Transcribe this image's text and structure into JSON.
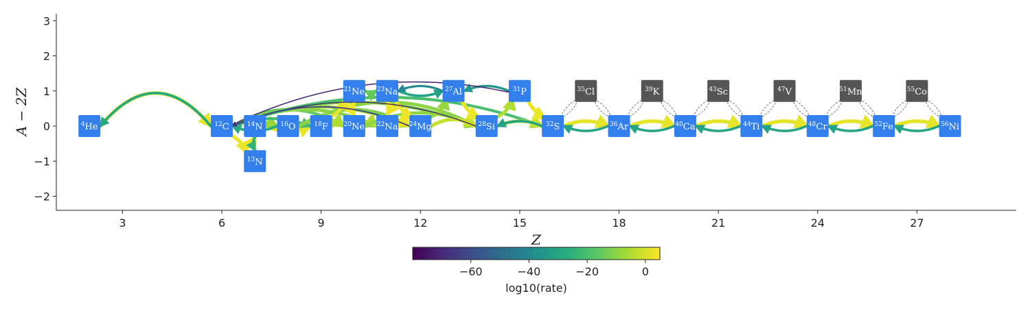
{
  "chart_data": {
    "type": "network",
    "xlabel": "Z",
    "ylabel": "A − 2Z",
    "xlim": [
      1,
      30
    ],
    "ylim": [
      -2.4,
      3.2
    ],
    "xticks": [
      3,
      6,
      9,
      12,
      15,
      18,
      21,
      24,
      27
    ],
    "yticks": [
      3,
      2,
      1,
      0,
      -1,
      -2
    ],
    "colorbar": {
      "label": "log10(rate)",
      "range": [
        -80,
        5
      ],
      "ticks": [
        -60,
        -40,
        -20,
        0
      ],
      "tick_labels": [
        "−60",
        "−40",
        "−20",
        "0"
      ]
    },
    "nodes": [
      {
        "sup": "4",
        "sym": "He",
        "Z": 2,
        "N": 0,
        "color": "#3380ed"
      },
      {
        "sup": "12",
        "sym": "C",
        "Z": 6,
        "N": 0,
        "color": "#3380ed"
      },
      {
        "sup": "13",
        "sym": "N",
        "Z": 7,
        "N": -1,
        "color": "#3380ed"
      },
      {
        "sup": "14",
        "sym": "N",
        "Z": 7,
        "N": 0,
        "color": "#3380ed"
      },
      {
        "sup": "16",
        "sym": "O",
        "Z": 8,
        "N": 0,
        "color": "#3380ed"
      },
      {
        "sup": "18",
        "sym": "F",
        "Z": 9,
        "N": 0,
        "color": "#3380ed"
      },
      {
        "sup": "20",
        "sym": "Ne",
        "Z": 10,
        "N": 0,
        "color": "#3380ed"
      },
      {
        "sup": "21",
        "sym": "Ne",
        "Z": 10,
        "N": 1,
        "color": "#3380ed"
      },
      {
        "sup": "22",
        "sym": "Na",
        "Z": 11,
        "N": 0,
        "color": "#3380ed"
      },
      {
        "sup": "23",
        "sym": "Na",
        "Z": 11,
        "N": 1,
        "color": "#3380ed"
      },
      {
        "sup": "24",
        "sym": "Mg",
        "Z": 12,
        "N": 0,
        "color": "#3380ed"
      },
      {
        "sup": "27",
        "sym": "Al",
        "Z": 13,
        "N": 1,
        "color": "#3380ed"
      },
      {
        "sup": "28",
        "sym": "Si",
        "Z": 14,
        "N": 0,
        "color": "#3380ed"
      },
      {
        "sup": "31",
        "sym": "P",
        "Z": 15,
        "N": 1,
        "color": "#3380ed"
      },
      {
        "sup": "32",
        "sym": "S",
        "Z": 16,
        "N": 0,
        "color": "#3380ed"
      },
      {
        "sup": "35",
        "sym": "Cl",
        "Z": 17,
        "N": 1,
        "color": "#555555"
      },
      {
        "sup": "36",
        "sym": "Ar",
        "Z": 18,
        "N": 0,
        "color": "#3380ed"
      },
      {
        "sup": "39",
        "sym": "K",
        "Z": 19,
        "N": 1,
        "color": "#555555"
      },
      {
        "sup": "40",
        "sym": "Ca",
        "Z": 20,
        "N": 0,
        "color": "#3380ed"
      },
      {
        "sup": "43",
        "sym": "Sc",
        "Z": 21,
        "N": 1,
        "color": "#555555"
      },
      {
        "sup": "44",
        "sym": "Ti",
        "Z": 22,
        "N": 0,
        "color": "#3380ed"
      },
      {
        "sup": "47",
        "sym": "V",
        "Z": 23,
        "N": 1,
        "color": "#555555"
      },
      {
        "sup": "48",
        "sym": "Cr",
        "Z": 24,
        "N": 0,
        "color": "#3380ed"
      },
      {
        "sup": "51",
        "sym": "Mn",
        "Z": 25,
        "N": 1,
        "color": "#555555"
      },
      {
        "sup": "52",
        "sym": "Fe",
        "Z": 26,
        "N": 0,
        "color": "#3380ed"
      },
      {
        "sup": "55",
        "sym": "Co",
        "Z": 27,
        "N": 1,
        "color": "#555555"
      },
      {
        "sup": "56",
        "sym": "Ni",
        "Z": 28,
        "N": 0,
        "color": "#3380ed"
      }
    ],
    "edges": [
      {
        "from": 0,
        "to": 1,
        "log_rate": 2,
        "bend": -1
      },
      {
        "from": 1,
        "to": 0,
        "log_rate": -28,
        "bend": 1
      },
      {
        "from": 1,
        "to": 2,
        "log_rate": 3,
        "bend": -0.2
      },
      {
        "from": 2,
        "to": 3,
        "log_rate": 3,
        "bend": -0.2
      },
      {
        "from": 3,
        "to": 2,
        "log_rate": -25,
        "bend": 0.2
      },
      {
        "from": 3,
        "to": 5,
        "log_rate": 2,
        "bend": 0.3
      },
      {
        "from": 1,
        "to": 4,
        "log_rate": -8,
        "bend": -0.3
      },
      {
        "from": 4,
        "to": 1,
        "log_rate": -28,
        "bend": -0.3
      },
      {
        "from": 1,
        "to": 6,
        "log_rate": -15,
        "bend": -0.5
      },
      {
        "from": 1,
        "to": 8,
        "log_rate": -10,
        "bend": -0.4
      },
      {
        "from": 1,
        "to": 10,
        "log_rate": -8,
        "bend": -0.4
      },
      {
        "from": 1,
        "to": 12,
        "log_rate": -12,
        "bend": -0.5
      },
      {
        "from": 1,
        "to": 14,
        "log_rate": -20,
        "bend": -0.6
      },
      {
        "from": 1,
        "to": 5,
        "log_rate": -22,
        "bend": -0.3
      },
      {
        "from": 4,
        "to": 6,
        "log_rate": -5,
        "bend": -0.4
      },
      {
        "from": 4,
        "to": 10,
        "log_rate": -12,
        "bend": -0.5
      },
      {
        "from": 4,
        "to": 12,
        "log_rate": -10,
        "bend": -0.5
      },
      {
        "from": 5,
        "to": 7,
        "log_rate": 2,
        "bend": 0.2
      },
      {
        "from": 5,
        "to": 6,
        "log_rate": -5,
        "bend": -0.3
      },
      {
        "from": 6,
        "to": 8,
        "log_rate": -5,
        "bend": -0.3
      },
      {
        "from": 6,
        "to": 10,
        "log_rate": -4,
        "bend": -0.3
      },
      {
        "from": 6,
        "to": 12,
        "log_rate": -10,
        "bend": -0.4
      },
      {
        "from": 7,
        "to": 6,
        "log_rate": 3,
        "bend": 0.2
      },
      {
        "from": 7,
        "to": 9,
        "log_rate": -15,
        "bend": 0.2
      },
      {
        "from": 8,
        "to": 9,
        "log_rate": 3,
        "bend": 0.2
      },
      {
        "from": 8,
        "to": 10,
        "log_rate": 3,
        "bend": -0.3
      },
      {
        "from": 9,
        "to": 10,
        "log_rate": 3,
        "bend": 0.2
      },
      {
        "from": 9,
        "to": 11,
        "log_rate": -30,
        "bend": 0.3
      },
      {
        "from": 10,
        "to": 11,
        "log_rate": -8,
        "bend": 0.3
      },
      {
        "from": 10,
        "to": 12,
        "log_rate": -2,
        "bend": -0.4
      },
      {
        "from": 11,
        "to": 12,
        "log_rate": 3,
        "bend": 0.2
      },
      {
        "from": 11,
        "to": 9,
        "log_rate": -40,
        "bend": 0.3
      },
      {
        "from": 12,
        "to": 13,
        "log_rate": -5,
        "bend": 0.3
      },
      {
        "from": 12,
        "to": 14,
        "log_rate": -2,
        "bend": -0.3
      },
      {
        "from": 13,
        "to": 14,
        "log_rate": 3,
        "bend": 0.2
      },
      {
        "from": 13,
        "to": 11,
        "log_rate": -35,
        "bend": 0.3
      },
      {
        "from": 13,
        "to": 1,
        "log_rate": -70,
        "bend": 0.5
      },
      {
        "from": 12,
        "to": 1,
        "log_rate": -75,
        "bend": 0.5
      },
      {
        "from": 10,
        "to": 1,
        "log_rate": -65,
        "bend": 0.4
      },
      {
        "from": 14,
        "to": 12,
        "log_rate": -30,
        "bend": 0.3
      },
      {
        "from": 14,
        "to": 16,
        "log_rate": 2,
        "bend": -0.3
      },
      {
        "from": 16,
        "to": 14,
        "log_rate": -30,
        "bend": -0.3
      },
      {
        "from": 16,
        "to": 18,
        "log_rate": 2,
        "bend": -0.3
      },
      {
        "from": 18,
        "to": 16,
        "log_rate": -30,
        "bend": -0.3
      },
      {
        "from": 18,
        "to": 20,
        "log_rate": 2,
        "bend": -0.3
      },
      {
        "from": 20,
        "to": 18,
        "log_rate": -30,
        "bend": -0.3
      },
      {
        "from": 20,
        "to": 22,
        "log_rate": 2,
        "bend": -0.3
      },
      {
        "from": 22,
        "to": 20,
        "log_rate": -30,
        "bend": -0.3
      },
      {
        "from": 22,
        "to": 24,
        "log_rate": 2,
        "bend": -0.3
      },
      {
        "from": 24,
        "to": 22,
        "log_rate": -30,
        "bend": -0.3
      },
      {
        "from": 24,
        "to": 26,
        "log_rate": 2,
        "bend": -0.3
      },
      {
        "from": 26,
        "to": 24,
        "log_rate": -30,
        "bend": -0.3
      }
    ],
    "dashed_edges": [
      [
        14,
        15
      ],
      [
        15,
        14
      ],
      [
        16,
        15
      ],
      [
        15,
        16
      ],
      [
        16,
        17
      ],
      [
        17,
        16
      ],
      [
        18,
        17
      ],
      [
        17,
        18
      ],
      [
        18,
        19
      ],
      [
        19,
        18
      ],
      [
        20,
        19
      ],
      [
        19,
        20
      ],
      [
        20,
        21
      ],
      [
        21,
        20
      ],
      [
        22,
        21
      ],
      [
        21,
        22
      ],
      [
        22,
        23
      ],
      [
        23,
        22
      ],
      [
        24,
        23
      ],
      [
        23,
        24
      ],
      [
        24,
        25
      ],
      [
        25,
        24
      ],
      [
        26,
        25
      ],
      [
        25,
        26
      ]
    ]
  }
}
